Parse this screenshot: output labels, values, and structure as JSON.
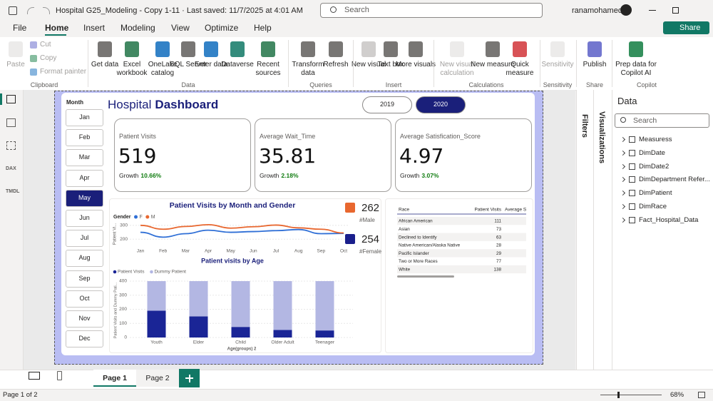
{
  "title_bar": {
    "title": "Hospital G25_Modeling - Copy 1-11 · Last saved: 11/7/2025 at 4:01 AM",
    "search": "Search",
    "user": "ranamohamed"
  },
  "menu": {
    "tabs": [
      "File",
      "Home",
      "Insert",
      "Modeling",
      "View",
      "Optimize",
      "Help"
    ],
    "active": 1,
    "share": "Share"
  },
  "ribbon": {
    "groups": [
      {
        "name": "Clipboard",
        "items": [
          {
            "label": "Paste",
            "enabled": false
          },
          {
            "label": "Cut",
            "enabled": false
          },
          {
            "label": "Copy",
            "enabled": false
          },
          {
            "label": "Format painter",
            "enabled": false
          }
        ]
      },
      {
        "name": "Data",
        "items": [
          {
            "label": "Get data",
            "enabled": true
          },
          {
            "label": "Excel workbook",
            "enabled": true
          },
          {
            "label": "OneLake catalog",
            "enabled": true
          },
          {
            "label": "SQL Server",
            "enabled": true
          },
          {
            "label": "Enter data",
            "enabled": true
          },
          {
            "label": "Dataverse",
            "enabled": true
          },
          {
            "label": "Recent sources",
            "enabled": true
          }
        ]
      },
      {
        "name": "Queries",
        "items": [
          {
            "label": "Transform data",
            "enabled": true
          },
          {
            "label": "Refresh",
            "enabled": true
          }
        ]
      },
      {
        "name": "Insert",
        "items": [
          {
            "label": "New visual",
            "enabled": true
          },
          {
            "label": "Text box",
            "enabled": true
          },
          {
            "label": "More visuals",
            "enabled": true
          }
        ]
      },
      {
        "name": "Calculations",
        "items": [
          {
            "label": "New visual calculation",
            "enabled": false
          },
          {
            "label": "New measure",
            "enabled": true
          },
          {
            "label": "Quick measure",
            "enabled": true
          }
        ]
      },
      {
        "name": "Sensitivity",
        "items": [
          {
            "label": "Sensitivity",
            "enabled": false
          }
        ]
      },
      {
        "name": "Share",
        "items": [
          {
            "label": "Publish",
            "enabled": true
          }
        ]
      },
      {
        "name": "Copilot",
        "items": [
          {
            "label": "Prep data for Copilot AI",
            "enabled": true
          }
        ]
      }
    ]
  },
  "left_rail": {
    "labels": [
      "DAX",
      "TMDL"
    ]
  },
  "dashboard": {
    "month_slicer": {
      "label": "Month",
      "months": [
        "Jan",
        "Feb",
        "Mar",
        "Apr",
        "May",
        "Jun",
        "Jul",
        "Aug",
        "Sep",
        "Oct",
        "Nov",
        "Dec"
      ],
      "selected": 4
    },
    "title_light": "Hospital",
    "title_bold": "Dashboard",
    "years": {
      "options": [
        "2019",
        "2020"
      ],
      "selected": 1
    },
    "cards": [
      {
        "label": "Patient Visits",
        "value": 519,
        "growth_label": "Growth",
        "growth": "10.66%"
      },
      {
        "label": "Average Wait_Time",
        "value": 35.81,
        "growth_label": "Growth",
        "growth": "2.18%"
      },
      {
        "label": "Average Satisfication_Score",
        "value": 4.97,
        "growth_label": "Growth",
        "growth": "3.07%"
      }
    ],
    "line_chart": {
      "type": "line",
      "title": "Patient Visits by Month and Gender",
      "legend_title": "Gender",
      "y_label": "Patient Vi...",
      "categories": [
        "Jan",
        "Feb",
        "Mar",
        "Apr",
        "May",
        "Jun",
        "Jul",
        "Aug",
        "Sep",
        "Oct"
      ],
      "series": [
        {
          "name": "F",
          "color": "#2f6fd6",
          "values": [
            250,
            215,
            240,
            265,
            250,
            255,
            262,
            270,
            240,
            242
          ]
        },
        {
          "name": "M",
          "color": "#e8672f",
          "values": [
            300,
            272,
            292,
            305,
            280,
            290,
            302,
            282,
            272,
            245
          ]
        }
      ],
      "ylim": [
        150,
        330
      ],
      "yticks": [
        200,
        300
      ]
    },
    "gender_cards": [
      {
        "value": 262,
        "label": "#Male",
        "color": "#e8672f"
      },
      {
        "value": 254,
        "label": "#Female",
        "color": "#1a1f8c"
      }
    ],
    "bar_chart": {
      "type": "stacked_bar",
      "title": "Patient visits by Age",
      "x_label": "Age(groups) 2",
      "y_label": "Patient Visits and Dummy Pati...",
      "categories": [
        "Youth",
        "Elder",
        "Child",
        "Older Adult",
        "Teenager"
      ],
      "series": [
        {
          "name": "Patient Visits",
          "color": "#1a2596",
          "values": [
            190,
            150,
            75,
            54,
            50
          ]
        },
        {
          "name": "Dummy Patient",
          "color": "#b3b7e3",
          "values": [
            210,
            250,
            325,
            346,
            350
          ]
        }
      ],
      "ylim": [
        0,
        400
      ],
      "yticks": [
        0,
        100,
        200,
        300,
        400
      ]
    },
    "race_table": {
      "columns": [
        "Race",
        "Patient Visits",
        "Average S"
      ],
      "rows": [
        [
          "African American",
          111
        ],
        [
          "Asian",
          73
        ],
        [
          "Declined to Identify",
          63
        ],
        [
          "Native American/Alaska Native",
          28
        ],
        [
          "Pacific Islander",
          29
        ],
        [
          "Two or More Races",
          77
        ],
        [
          "White",
          138
        ]
      ]
    }
  },
  "panes": {
    "filters": "Filters",
    "visualizations": "Visualizations",
    "data": {
      "title": "Data",
      "search": "Search",
      "fields": [
        "Measuress",
        "DimDate",
        "DimDate2",
        "DimDepartment Refer...",
        "DimPatient",
        "DimRace",
        "Fact_Hospital_Data"
      ]
    }
  },
  "pages": {
    "tabs": [
      "Page 1",
      "Page 2"
    ],
    "active": 0
  },
  "status": {
    "page": "Page 1 of 2",
    "zoom": "68%"
  }
}
